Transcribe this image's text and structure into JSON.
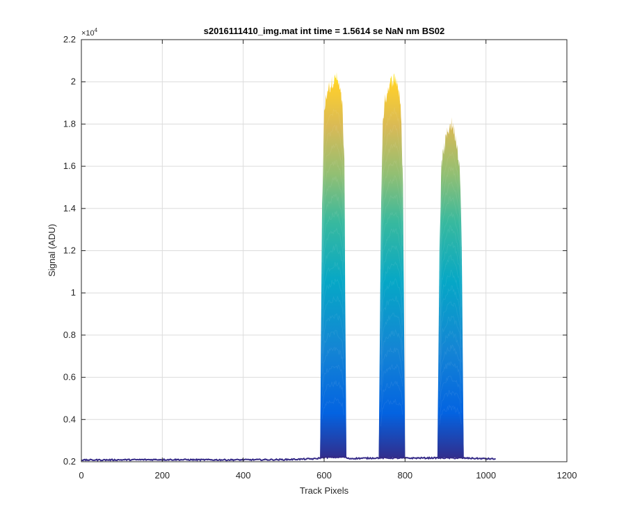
{
  "chart_data": {
    "type": "area",
    "title": "s2016111410_img.mat int time = 1.5614 se  NaN nm BS02",
    "xlabel": "Track Pixels",
    "ylabel": "Signal (ADU)",
    "y_exponent_label": "×10",
    "y_exponent_power": "4",
    "xlim": [
      0,
      1200
    ],
    "ylim": [
      0.2,
      2.2
    ],
    "y_scale_note": "values in units of 10^4 ADU",
    "grid": true,
    "colormap": [
      "#352a87",
      "#0363e1",
      "#1485d4",
      "#06a7c6",
      "#38b99e",
      "#92bf73",
      "#d9ba56",
      "#fcce2e",
      "#f9fb0e"
    ],
    "xticks": [
      "0",
      "200",
      "400",
      "600",
      "800",
      "1000",
      "1200"
    ],
    "xtick_values": [
      0,
      200,
      400,
      600,
      800,
      1000,
      1200
    ],
    "yticks": [
      "0.2",
      "0.4",
      "0.6",
      "0.8",
      "1",
      "1.2",
      "1.4",
      "1.6",
      "1.8",
      "2",
      "2.2"
    ],
    "ytick_values": [
      0.2,
      0.4,
      0.6,
      0.8,
      1.0,
      1.2,
      1.4,
      1.6,
      1.8,
      2.0,
      2.2
    ],
    "baseline": {
      "x": [
        0,
        100,
        200,
        300,
        400,
        500,
        580,
        595,
        650,
        660,
        740,
        800,
        880,
        950,
        1024
      ],
      "y": [
        0.208,
        0.209,
        0.21,
        0.209,
        0.209,
        0.21,
        0.214,
        0.22,
        0.222,
        0.215,
        0.218,
        0.217,
        0.218,
        0.217,
        0.213
      ]
    },
    "peaks": [
      {
        "x": [
          590,
          595,
          600,
          605,
          610,
          615,
          620,
          625,
          630,
          635,
          640,
          645,
          650,
          655
        ],
        "max": [
          0.22,
          1.4,
          1.85,
          1.93,
          1.97,
          1.98,
          2.0,
          2.01,
          2.02,
          1.99,
          1.95,
          1.88,
          1.6,
          0.22
        ],
        "mid": [
          0.22,
          1.1,
          1.45,
          1.52,
          1.55,
          1.56,
          1.57,
          1.58,
          1.58,
          1.57,
          1.54,
          1.48,
          1.25,
          0.22
        ]
      },
      {
        "x": [
          735,
          740,
          745,
          750,
          755,
          760,
          765,
          770,
          775,
          780,
          785,
          790,
          795,
          800
        ],
        "max": [
          0.22,
          1.3,
          1.82,
          1.9,
          1.95,
          1.98,
          2.0,
          2.01,
          2.02,
          2.0,
          1.95,
          1.85,
          1.5,
          0.22
        ],
        "mid": [
          0.22,
          1.0,
          1.42,
          1.48,
          1.52,
          1.55,
          1.56,
          1.57,
          1.57,
          1.56,
          1.52,
          1.45,
          1.15,
          0.22
        ]
      },
      {
        "x": [
          880,
          885,
          890,
          895,
          900,
          905,
          910,
          915,
          920,
          925,
          930,
          935,
          940,
          945
        ],
        "max": [
          0.22,
          1.2,
          1.6,
          1.67,
          1.72,
          1.76,
          1.79,
          1.8,
          1.78,
          1.74,
          1.68,
          1.6,
          1.25,
          0.22
        ],
        "mid": [
          0.22,
          0.95,
          1.3,
          1.36,
          1.39,
          1.41,
          1.43,
          1.44,
          1.43,
          1.4,
          1.36,
          1.3,
          1.02,
          0.22
        ]
      }
    ]
  }
}
